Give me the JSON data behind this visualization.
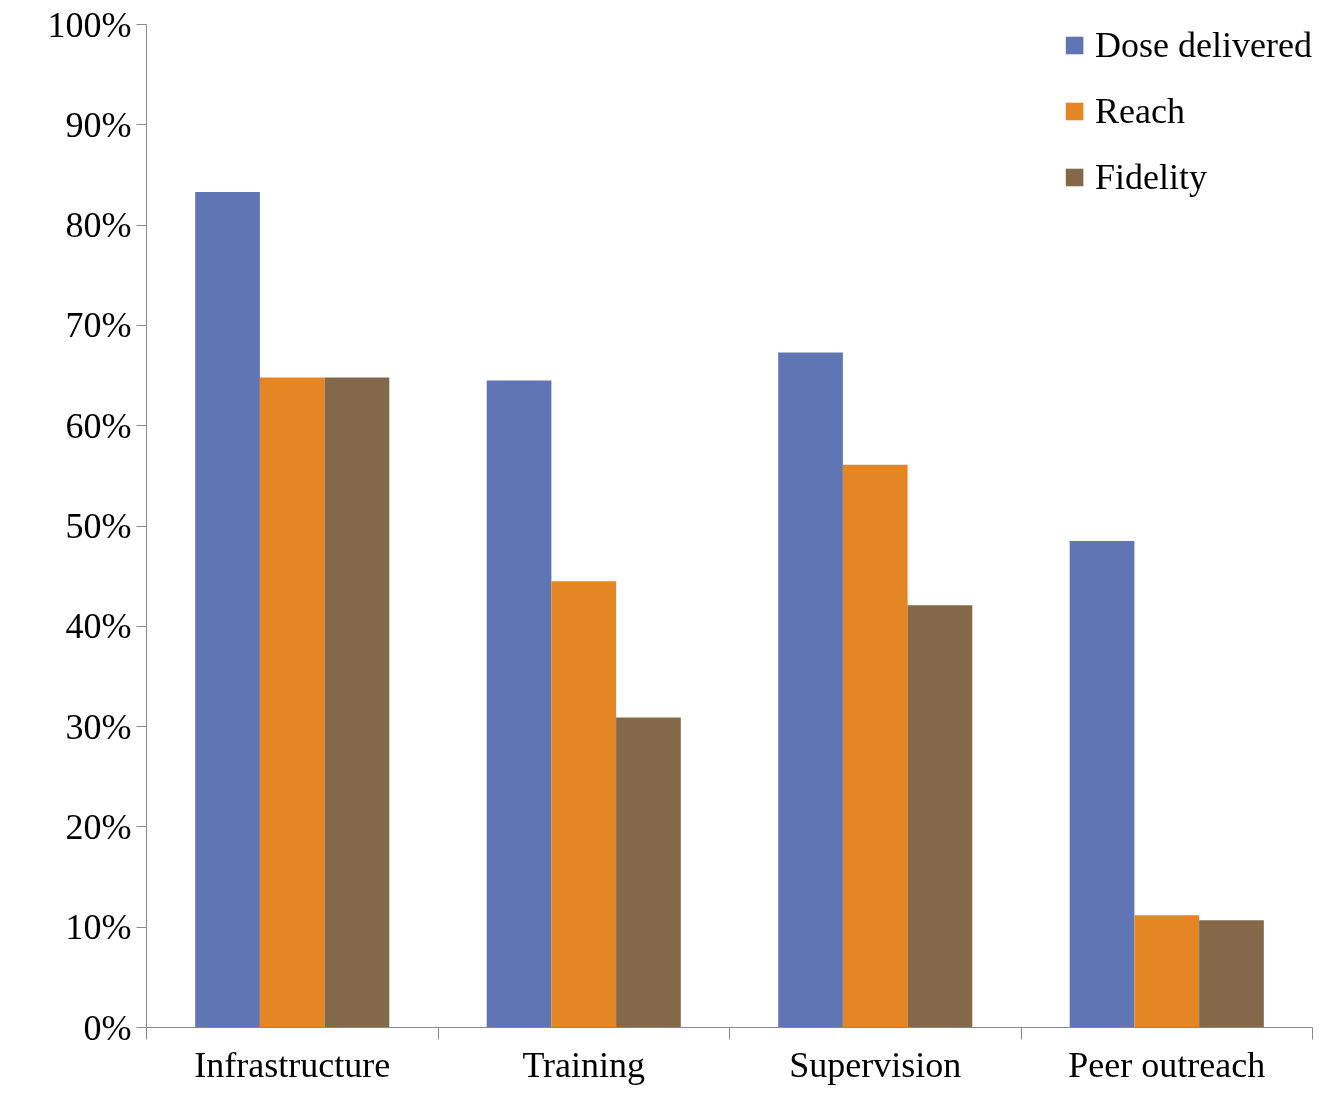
{
  "chart_data": {
    "type": "bar",
    "categories": [
      "Infrastructure",
      "Training",
      "Supervision",
      "Peer outreach"
    ],
    "series": [
      {
        "name": "Dose delivered",
        "color": "#6076b4",
        "values": [
          83.3,
          64.5,
          67.3,
          48.5
        ]
      },
      {
        "name": "Reach",
        "color": "#e38623",
        "values": [
          64.8,
          44.5,
          56.1,
          11.2
        ]
      },
      {
        "name": "Fidelity",
        "color": "#84684a",
        "values": [
          64.8,
          30.9,
          42.1,
          10.7
        ]
      }
    ],
    "ylim": [
      0,
      100
    ],
    "yticks": [
      {
        "value": 0,
        "label": "0%"
      },
      {
        "value": 10,
        "label": "10%"
      },
      {
        "value": 20,
        "label": "20%"
      },
      {
        "value": 30,
        "label": "30%"
      },
      {
        "value": 40,
        "label": "40%"
      },
      {
        "value": 50,
        "label": "50%"
      },
      {
        "value": 60,
        "label": "60%"
      },
      {
        "value": 70,
        "label": "70%"
      },
      {
        "value": 80,
        "label": "80%"
      },
      {
        "value": 90,
        "label": "90%"
      },
      {
        "value": 100,
        "label": "100%"
      }
    ],
    "grid": false,
    "legend": "top right"
  }
}
